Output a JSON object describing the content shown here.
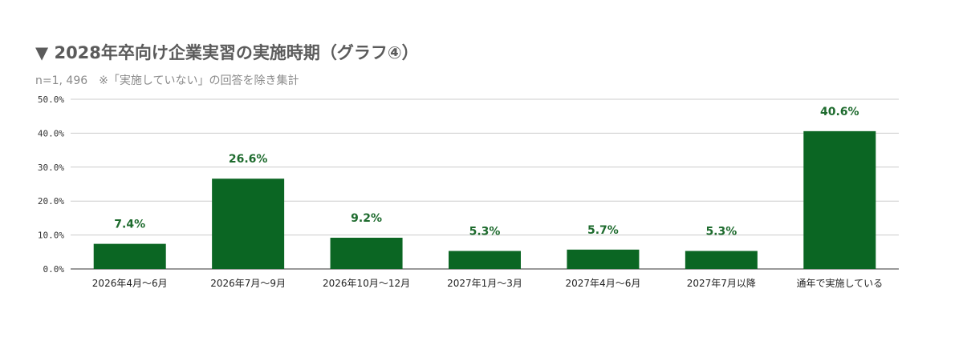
{
  "chart_data": {
    "type": "bar",
    "title": "▼ 2028年卒向け企業実習の実施時期（グラフ④）",
    "subtitle": "n=1, 496　※「実施していない」の回答を除き集計",
    "categories": [
      "2026年4月～6月",
      "2026年7月～9月",
      "2026年10月～12月",
      "2027年1月～3月",
      "2027年4月～6月",
      "2027年7月以降",
      "通年で実施している"
    ],
    "values": [
      7.4,
      26.6,
      9.2,
      5.3,
      5.7,
      5.3,
      40.6
    ],
    "data_labels": [
      "7.4%",
      "26.6%",
      "9.2%",
      "5.3%",
      "5.7%",
      "5.3%",
      "40.6%"
    ],
    "yticks": [
      0,
      10,
      20,
      30,
      40,
      50
    ],
    "ytick_labels": [
      "0.0%",
      "10.0%",
      "20.0%",
      "30.0%",
      "40.0%",
      "50.0%"
    ],
    "ylim": [
      0,
      50
    ],
    "xlabel": "",
    "ylabel": "",
    "grid": true,
    "legend": "none",
    "bar_color": "#0b6623",
    "label_color": "#1e6b2e"
  }
}
